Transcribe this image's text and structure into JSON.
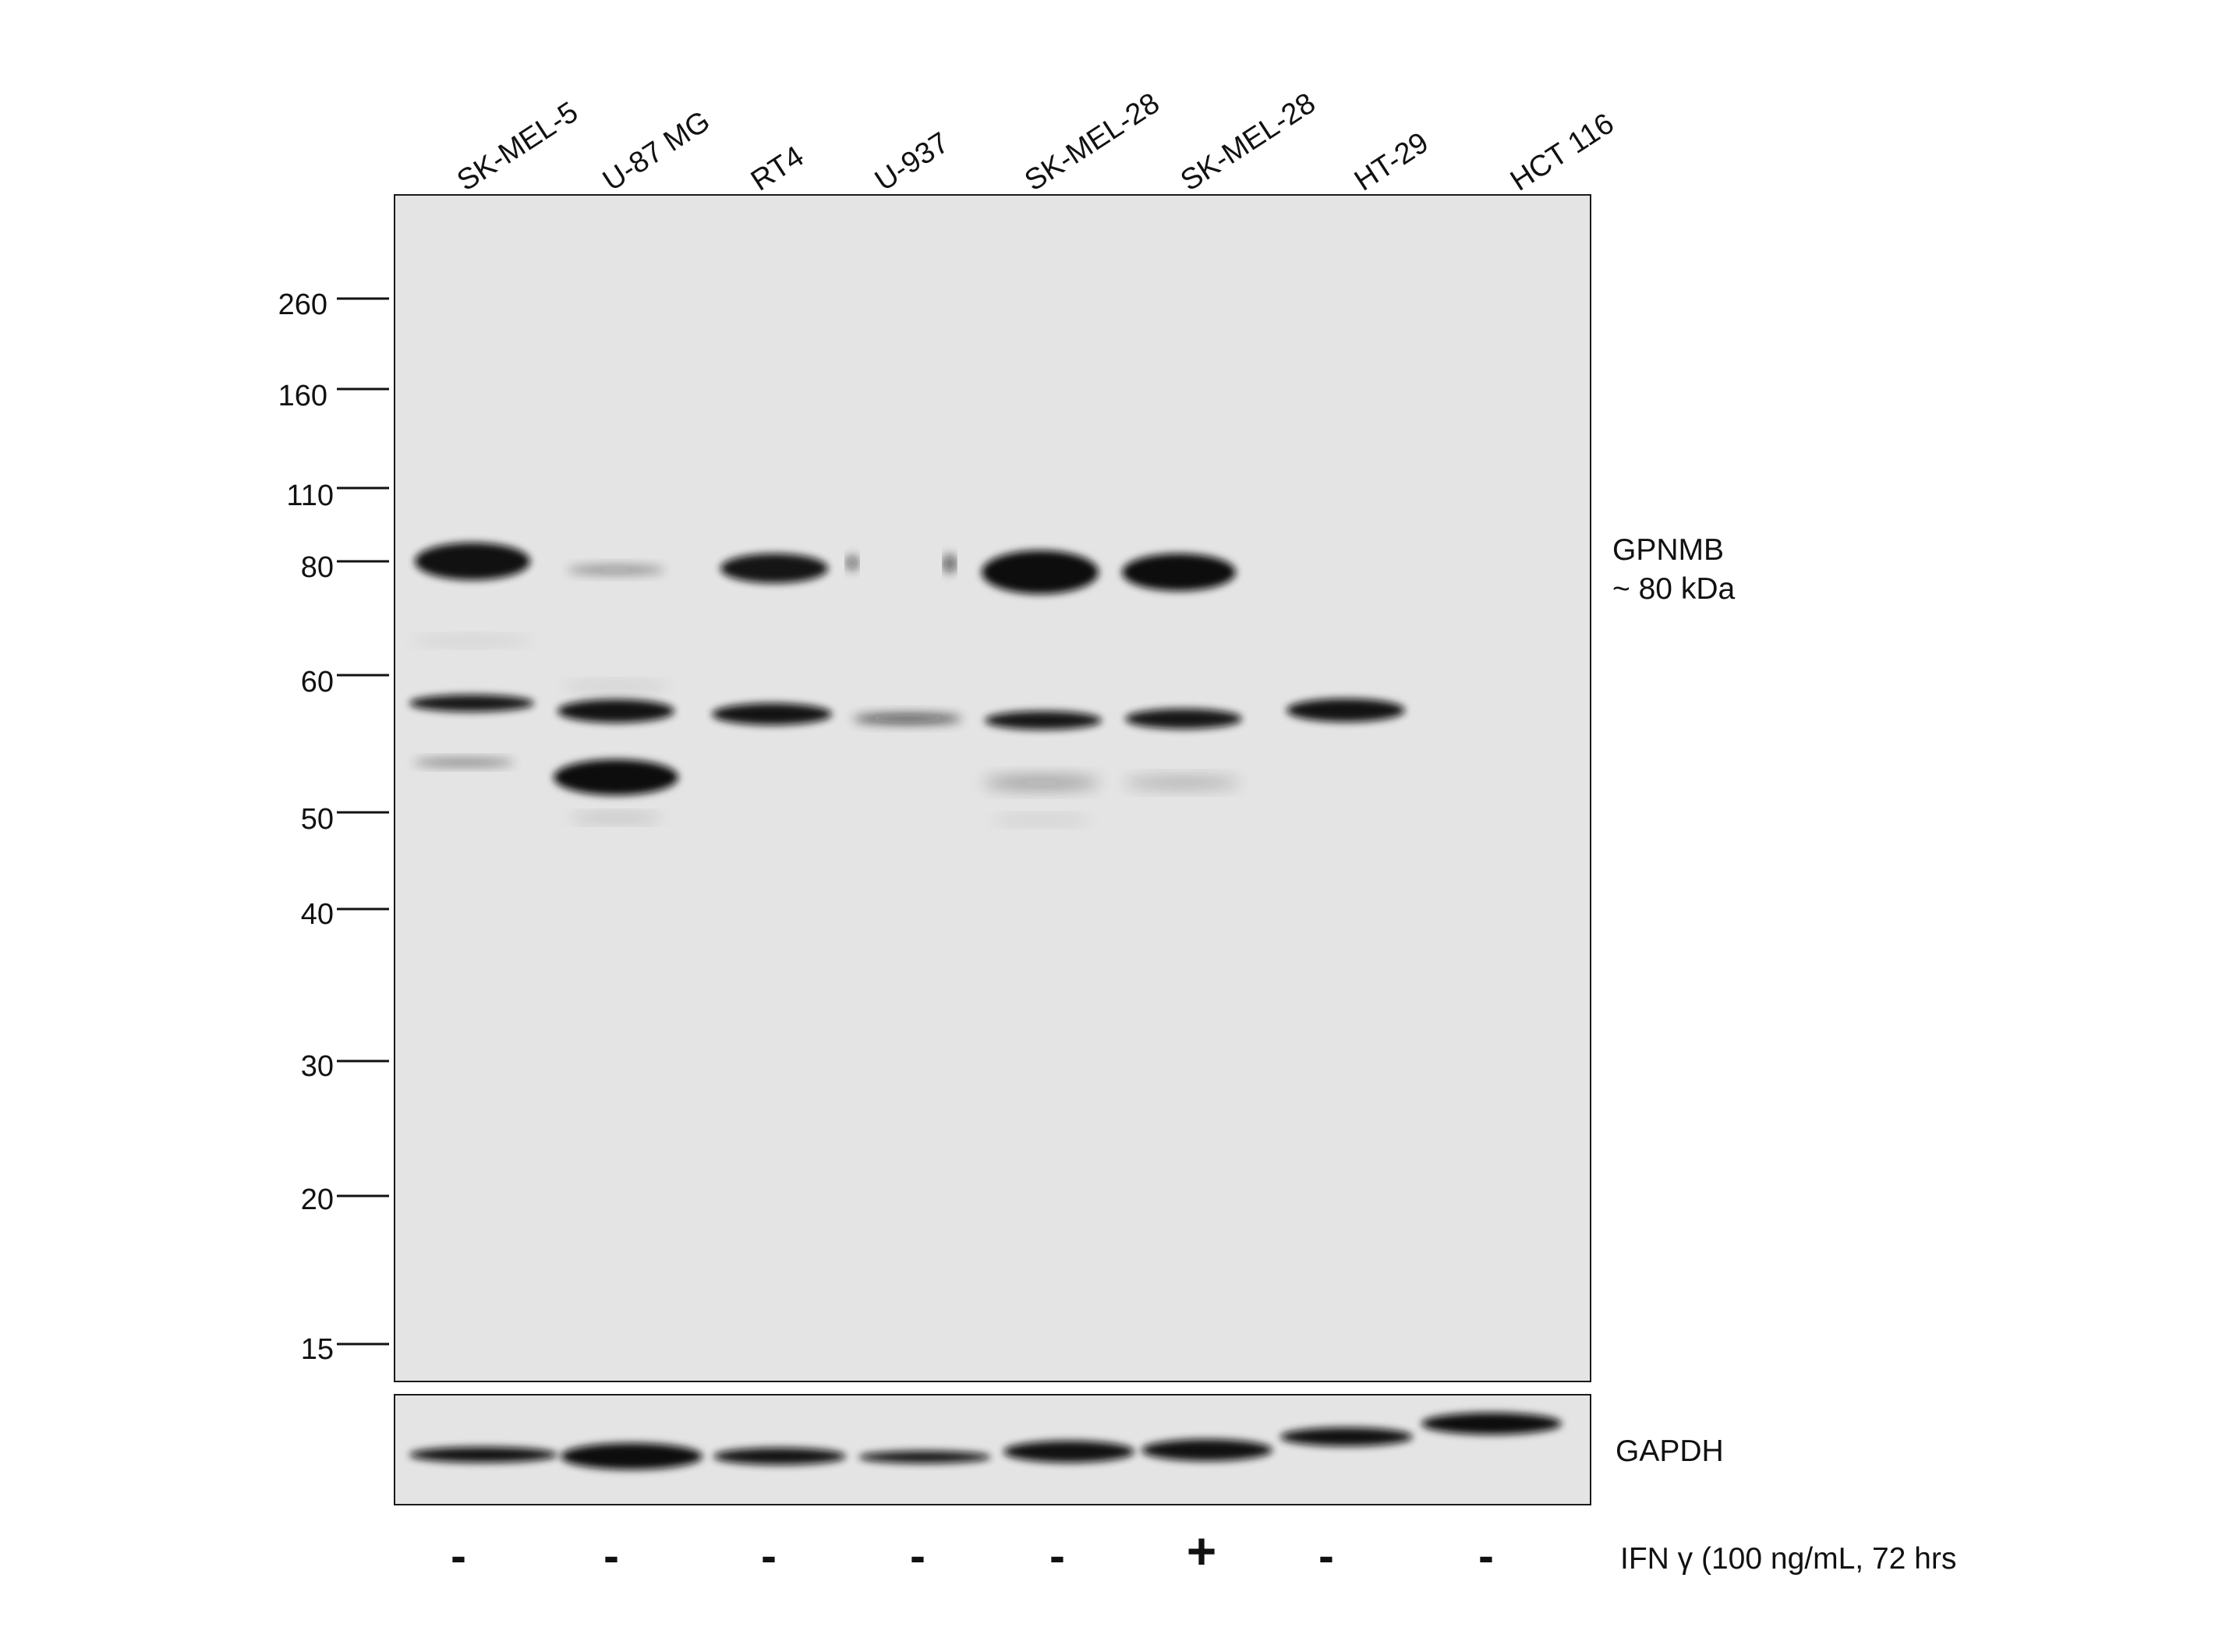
{
  "lanes": [
    {
      "label": "SK-MEL-5",
      "treatment": "-"
    },
    {
      "label": "U-87 MG",
      "treatment": "-"
    },
    {
      "label": "RT4",
      "treatment": "-"
    },
    {
      "label": "U-937",
      "treatment": "-"
    },
    {
      "label": "SK-MEL-28",
      "treatment": "-"
    },
    {
      "label": "SK-MEL-28",
      "treatment": "+"
    },
    {
      "label": "HT-29",
      "treatment": "-"
    },
    {
      "label": "HCT 116",
      "treatment": "-"
    }
  ],
  "markers": [
    "260",
    "160",
    "110",
    "80",
    "60",
    "50",
    "40",
    "30",
    "20",
    "15"
  ],
  "target": {
    "name": "GPNMB",
    "size": "~ 80 kDa"
  },
  "loading_control": {
    "name": "GAPDH"
  },
  "treatment_label": "IFN γ (100 ng/mL, 72 hrs",
  "colors": {
    "membrane": "#e4e4e4",
    "band": "#0b0b0b",
    "border": "#1a1a1a"
  }
}
